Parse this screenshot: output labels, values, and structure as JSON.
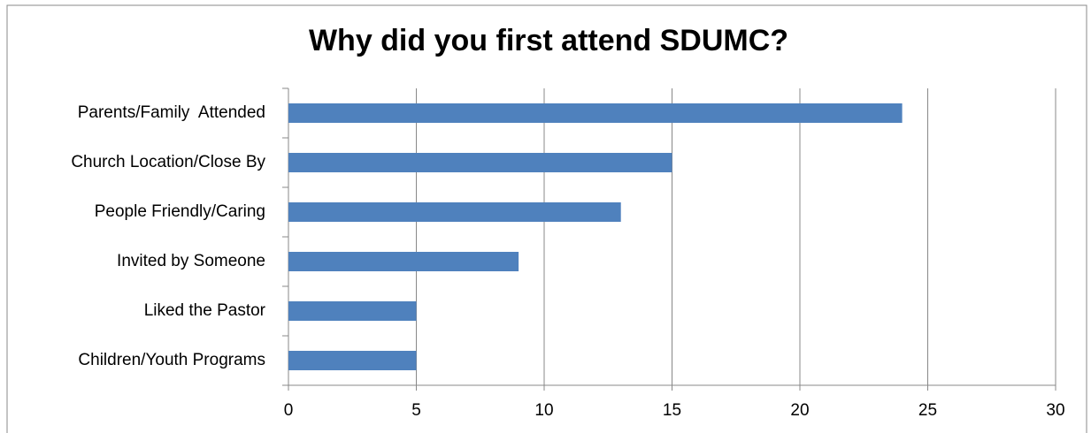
{
  "chart_data": {
    "type": "bar",
    "orientation": "horizontal",
    "title": "Why did you first attend SDUMC?",
    "categories": [
      "Parents/Family  Attended",
      "Church Location/Close By",
      "People Friendly/Caring",
      "Invited by Someone",
      "Liked the Pastor",
      "Children/Youth Programs"
    ],
    "values": [
      24,
      15,
      13,
      9,
      5,
      5
    ],
    "color": "#4f81bd",
    "xlim": [
      0,
      30
    ],
    "xticks": [
      0,
      5,
      10,
      15,
      20,
      25,
      30
    ],
    "grid": true
  }
}
